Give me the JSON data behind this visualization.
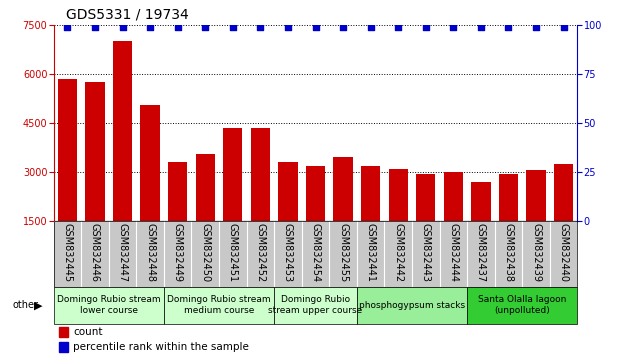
{
  "title": "GDS5331 / 19734",
  "samples": [
    "GSM832445",
    "GSM832446",
    "GSM832447",
    "GSM832448",
    "GSM832449",
    "GSM832450",
    "GSM832451",
    "GSM832452",
    "GSM832453",
    "GSM832454",
    "GSM832455",
    "GSM832441",
    "GSM832442",
    "GSM832443",
    "GSM832444",
    "GSM832437",
    "GSM832438",
    "GSM832439",
    "GSM832440"
  ],
  "counts": [
    5850,
    5750,
    7000,
    5050,
    3300,
    3550,
    4350,
    4350,
    3300,
    3200,
    3450,
    3200,
    3100,
    2950,
    3000,
    2700,
    2950,
    3050,
    3250
  ],
  "percentiles": [
    99,
    99,
    99,
    99,
    99,
    99,
    99,
    99,
    99,
    99,
    99,
    99,
    99,
    99,
    99,
    99,
    99,
    99,
    99
  ],
  "bar_color": "#cc0000",
  "dot_color": "#0000cc",
  "ylim_left": [
    1500,
    7500
  ],
  "ylim_right": [
    0,
    100
  ],
  "yticks_left": [
    1500,
    3000,
    4500,
    6000,
    7500
  ],
  "yticks_right": [
    0,
    25,
    50,
    75,
    100
  ],
  "groups": [
    {
      "label": "Domingo Rubio stream\nlower course",
      "start": 0,
      "end": 3,
      "color": "#ccffcc"
    },
    {
      "label": "Domingo Rubio stream\nmedium course",
      "start": 4,
      "end": 7,
      "color": "#ccffcc"
    },
    {
      "label": "Domingo Rubio\nstream upper course",
      "start": 8,
      "end": 10,
      "color": "#ccffcc"
    },
    {
      "label": "phosphogypsum stacks",
      "start": 11,
      "end": 14,
      "color": "#99ee99"
    },
    {
      "label": "Santa Olalla lagoon\n(unpolluted)",
      "start": 15,
      "end": 18,
      "color": "#33cc33"
    }
  ],
  "legend_count_label": "count",
  "legend_pct_label": "percentile rank within the sample",
  "other_label": "other",
  "background_color": "#ffffff",
  "tick_area_color": "#c8c8c8",
  "dotted_line_color": "#000000",
  "title_fontsize": 10,
  "axis_label_fontsize": 7,
  "tick_fontsize": 7,
  "group_fontsize": 6.5
}
